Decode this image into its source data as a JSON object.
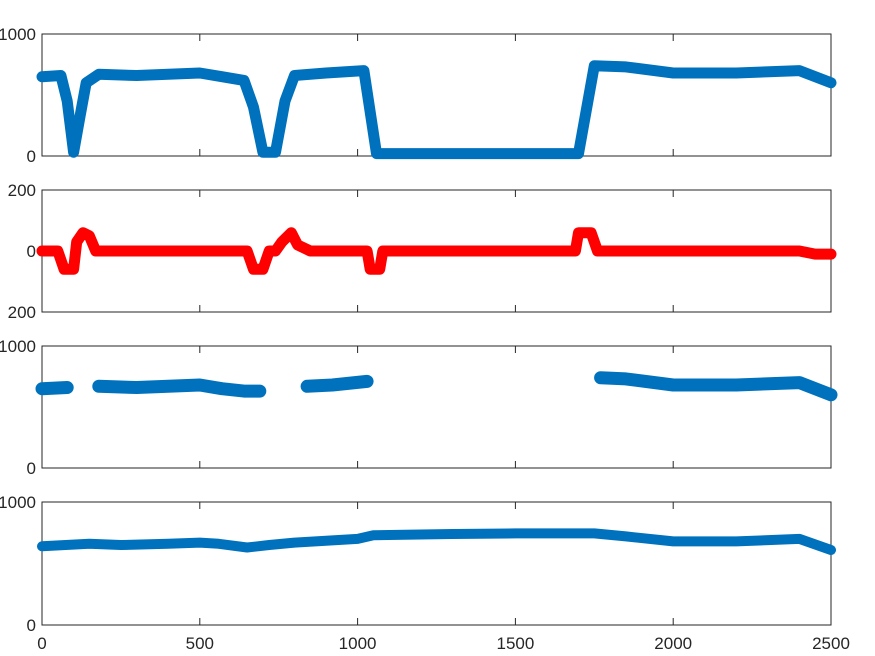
{
  "chart_data": [
    {
      "type": "line",
      "xlim": [
        0,
        2500
      ],
      "ylim": [
        0,
        1000
      ],
      "yticks": [
        "0",
        "1000"
      ],
      "grid": false,
      "series": [
        {
          "color": "#0072BD",
          "segments": [
            [
              [
                0,
                650
              ],
              [
                60,
                660
              ],
              [
                80,
                450
              ],
              [
                100,
                30
              ],
              [
                120,
                320
              ],
              [
                140,
                600
              ],
              [
                180,
                670
              ],
              [
                300,
                660
              ],
              [
                500,
                680
              ],
              [
                570,
                650
              ],
              [
                640,
                620
              ],
              [
                670,
                400
              ],
              [
                700,
                30
              ],
              [
                740,
                30
              ],
              [
                770,
                450
              ],
              [
                800,
                660
              ],
              [
                900,
                680
              ],
              [
                1020,
                700
              ],
              [
                1060,
                20
              ],
              [
                1700,
                20
              ],
              [
                1750,
                740
              ],
              [
                1850,
                730
              ],
              [
                2000,
                680
              ],
              [
                2200,
                680
              ],
              [
                2400,
                700
              ],
              [
                2500,
                600
              ]
            ]
          ]
        }
      ]
    },
    {
      "type": "line",
      "xlim": [
        0,
        2500
      ],
      "ylim": [
        -200,
        200
      ],
      "yticks": [
        "200",
        "0",
        "200"
      ],
      "grid": false,
      "series": [
        {
          "color": "#FF0000",
          "segments": [
            [
              [
                0,
                0
              ],
              [
                50,
                0
              ],
              [
                70,
                -60
              ],
              [
                100,
                -60
              ],
              [
                110,
                30
              ],
              [
                130,
                60
              ],
              [
                150,
                50
              ],
              [
                170,
                0
              ],
              [
                400,
                0
              ],
              [
                650,
                0
              ],
              [
                670,
                -60
              ],
              [
                700,
                -60
              ],
              [
                720,
                0
              ],
              [
                740,
                0
              ],
              [
                760,
                30
              ],
              [
                790,
                60
              ],
              [
                810,
                20
              ],
              [
                850,
                0
              ],
              [
                1030,
                0
              ],
              [
                1040,
                -60
              ],
              [
                1070,
                -60
              ],
              [
                1080,
                0
              ],
              [
                1690,
                0
              ],
              [
                1700,
                60
              ],
              [
                1740,
                60
              ],
              [
                1760,
                0
              ],
              [
                2400,
                0
              ],
              [
                2450,
                -10
              ],
              [
                2500,
                -10
              ]
            ]
          ]
        }
      ]
    },
    {
      "type": "line",
      "xlim": [
        0,
        2500
      ],
      "ylim": [
        0,
        1000
      ],
      "yticks": [
        "0",
        "1000"
      ],
      "grid": false,
      "series": [
        {
          "color": "#0072BD",
          "segments": [
            [
              [
                0,
                650
              ],
              [
                80,
                660
              ]
            ],
            [
              [
                180,
                670
              ],
              [
                300,
                660
              ],
              [
                500,
                680
              ],
              [
                570,
                650
              ],
              [
                640,
                630
              ],
              [
                690,
                630
              ]
            ],
            [
              [
                840,
                670
              ],
              [
                920,
                680
              ],
              [
                1030,
                710
              ]
            ],
            [
              [
                1770,
                740
              ],
              [
                1850,
                730
              ],
              [
                2000,
                680
              ],
              [
                2200,
                680
              ],
              [
                2400,
                700
              ],
              [
                2500,
                600
              ]
            ]
          ]
        }
      ]
    },
    {
      "type": "line",
      "xlim": [
        0,
        2500
      ],
      "ylim": [
        0,
        1000
      ],
      "yticks": [
        "0",
        "1000"
      ],
      "x_tick_labels": [
        "0",
        "500",
        "1000",
        "1500",
        "2000",
        "2500"
      ],
      "grid": false,
      "series": [
        {
          "color": "#0072BD",
          "segments": [
            [
              [
                0,
                640
              ],
              [
                150,
                660
              ],
              [
                250,
                650
              ],
              [
                400,
                660
              ],
              [
                500,
                670
              ],
              [
                560,
                660
              ],
              [
                650,
                630
              ],
              [
                720,
                650
              ],
              [
                800,
                670
              ],
              [
                1000,
                700
              ],
              [
                1050,
                730
              ],
              [
                1300,
                740
              ],
              [
                1500,
                745
              ],
              [
                1750,
                745
              ],
              [
                1850,
                720
              ],
              [
                2000,
                680
              ],
              [
                2200,
                680
              ],
              [
                2400,
                700
              ],
              [
                2500,
                610
              ]
            ]
          ]
        }
      ]
    }
  ]
}
